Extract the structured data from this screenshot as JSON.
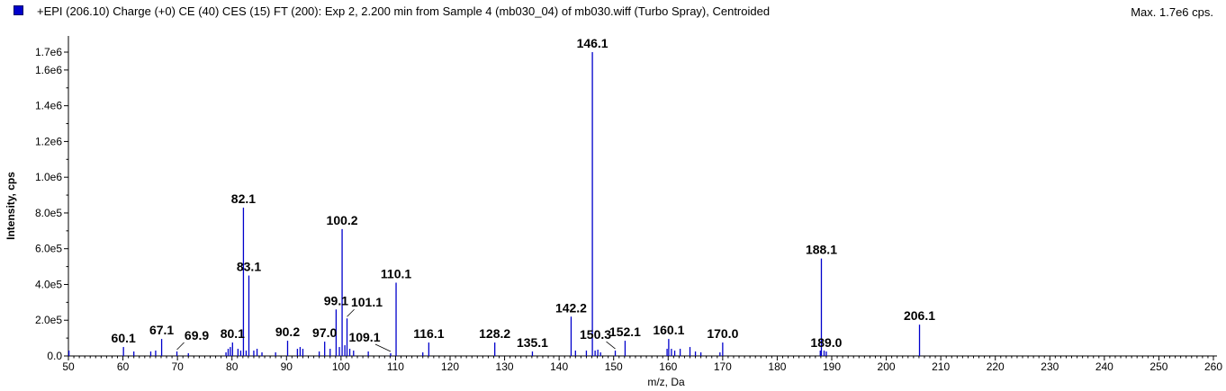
{
  "header": {
    "title": "+EPI (206.10) Charge (+0) CE (40) CES (15) FT (200): Exp 2, 2.200 min from Sample 4 (mb030_04) of mb030.wiff (Turbo Spray), Centroided",
    "max_label": "Max. 1.7e6 cps.",
    "series_color": "#0000cc"
  },
  "chart_data": {
    "type": "bar",
    "title": "+EPI (206.10) Charge (+0) CE (40) CES (15) FT (200): Exp 2, 2.200 min from Sample 4 (mb030_04) of mb030.wiff (Turbo Spray), Centroided",
    "xlabel": "m/z, Da",
    "ylabel": "Intensity, cps",
    "xlim": [
      50,
      260
    ],
    "ylim": [
      0,
      1750000
    ],
    "grid": false,
    "x_ticks": [
      50,
      60,
      70,
      80,
      90,
      100,
      110,
      120,
      130,
      140,
      150,
      160,
      170,
      180,
      190,
      200,
      210,
      220,
      230,
      240,
      250,
      260
    ],
    "x_tick_labels": [
      "50",
      "60",
      "70",
      "80",
      "90",
      "100",
      "110",
      "120",
      "130",
      "140",
      "150",
      "160",
      "170",
      "180",
      "190",
      "200",
      "210",
      "220",
      "230",
      "240",
      "250",
      "260"
    ],
    "y_ticks": [
      0,
      200000,
      400000,
      600000,
      800000,
      1000000,
      1200000,
      1400000,
      1600000,
      1700000
    ],
    "y_tick_labels": [
      "0.0",
      "2.0e5",
      "4.0e5",
      "6.0e5",
      "8.0e5",
      "1.0e6",
      "1.2e6",
      "1.4e6",
      "1.6e6",
      "1.7e6"
    ],
    "peaks": [
      {
        "mz": 50.1,
        "intensity": 30000
      },
      {
        "mz": 60.1,
        "intensity": 50000
      },
      {
        "mz": 62.0,
        "intensity": 25000
      },
      {
        "mz": 65.1,
        "intensity": 25000
      },
      {
        "mz": 66.0,
        "intensity": 30000
      },
      {
        "mz": 67.1,
        "intensity": 95000
      },
      {
        "mz": 69.9,
        "intensity": 25000
      },
      {
        "mz": 72.0,
        "intensity": 15000
      },
      {
        "mz": 78.9,
        "intensity": 20000
      },
      {
        "mz": 79.3,
        "intensity": 40000
      },
      {
        "mz": 79.7,
        "intensity": 50000
      },
      {
        "mz": 80.1,
        "intensity": 75000
      },
      {
        "mz": 81.1,
        "intensity": 40000
      },
      {
        "mz": 81.6,
        "intensity": 30000
      },
      {
        "mz": 82.1,
        "intensity": 830000
      },
      {
        "mz": 82.6,
        "intensity": 30000
      },
      {
        "mz": 83.1,
        "intensity": 450000
      },
      {
        "mz": 84.0,
        "intensity": 30000
      },
      {
        "mz": 84.6,
        "intensity": 40000
      },
      {
        "mz": 85.5,
        "intensity": 20000
      },
      {
        "mz": 88.0,
        "intensity": 20000
      },
      {
        "mz": 90.2,
        "intensity": 85000
      },
      {
        "mz": 92.0,
        "intensity": 40000
      },
      {
        "mz": 92.5,
        "intensity": 50000
      },
      {
        "mz": 93.0,
        "intensity": 40000
      },
      {
        "mz": 96.0,
        "intensity": 25000
      },
      {
        "mz": 97.0,
        "intensity": 80000
      },
      {
        "mz": 98.0,
        "intensity": 40000
      },
      {
        "mz": 99.1,
        "intensity": 260000
      },
      {
        "mz": 99.7,
        "intensity": 50000
      },
      {
        "mz": 100.2,
        "intensity": 710000
      },
      {
        "mz": 100.7,
        "intensity": 60000
      },
      {
        "mz": 101.1,
        "intensity": 210000
      },
      {
        "mz": 101.6,
        "intensity": 40000
      },
      {
        "mz": 102.3,
        "intensity": 30000
      },
      {
        "mz": 105.0,
        "intensity": 25000
      },
      {
        "mz": 109.1,
        "intensity": 15000
      },
      {
        "mz": 110.1,
        "intensity": 410000
      },
      {
        "mz": 115.0,
        "intensity": 20000
      },
      {
        "mz": 116.1,
        "intensity": 75000
      },
      {
        "mz": 128.2,
        "intensity": 75000
      },
      {
        "mz": 135.1,
        "intensity": 25000
      },
      {
        "mz": 142.2,
        "intensity": 220000
      },
      {
        "mz": 143.0,
        "intensity": 30000
      },
      {
        "mz": 145.0,
        "intensity": 30000
      },
      {
        "mz": 146.1,
        "intensity": 1700000
      },
      {
        "mz": 146.6,
        "intensity": 30000
      },
      {
        "mz": 147.1,
        "intensity": 35000
      },
      {
        "mz": 147.6,
        "intensity": 20000
      },
      {
        "mz": 150.3,
        "intensity": 30000
      },
      {
        "mz": 152.1,
        "intensity": 85000
      },
      {
        "mz": 159.8,
        "intensity": 40000
      },
      {
        "mz": 160.1,
        "intensity": 95000
      },
      {
        "mz": 160.6,
        "intensity": 40000
      },
      {
        "mz": 161.2,
        "intensity": 30000
      },
      {
        "mz": 162.2,
        "intensity": 40000
      },
      {
        "mz": 164.0,
        "intensity": 50000
      },
      {
        "mz": 165.0,
        "intensity": 25000
      },
      {
        "mz": 166.0,
        "intensity": 20000
      },
      {
        "mz": 169.5,
        "intensity": 20000
      },
      {
        "mz": 170.0,
        "intensity": 75000
      },
      {
        "mz": 187.9,
        "intensity": 30000
      },
      {
        "mz": 188.1,
        "intensity": 545000
      },
      {
        "mz": 188.6,
        "intensity": 30000
      },
      {
        "mz": 189.0,
        "intensity": 25000
      },
      {
        "mz": 206.1,
        "intensity": 175000
      }
    ],
    "annotations": [
      {
        "text": "60.1",
        "mz": 60.1,
        "intensity": 50000
      },
      {
        "text": "67.1",
        "mz": 67.1,
        "intensity": 95000
      },
      {
        "text": "69.9",
        "mz": 69.9,
        "intensity": 25000,
        "leader": true
      },
      {
        "text": "80.1",
        "mz": 80.1,
        "intensity": 75000
      },
      {
        "text": "82.1",
        "mz": 82.1,
        "intensity": 830000
      },
      {
        "text": "83.1",
        "mz": 83.1,
        "intensity": 450000
      },
      {
        "text": "90.2",
        "mz": 90.2,
        "intensity": 85000
      },
      {
        "text": "97.0",
        "mz": 97.0,
        "intensity": 80000
      },
      {
        "text": "99.1",
        "mz": 99.1,
        "intensity": 260000
      },
      {
        "text": "100.2",
        "mz": 100.2,
        "intensity": 710000
      },
      {
        "text": "101.1",
        "mz": 101.1,
        "intensity": 210000,
        "leader": true
      },
      {
        "text": "109.1",
        "mz": 109.1,
        "intensity": 15000,
        "leader": true
      },
      {
        "text": "110.1",
        "mz": 110.1,
        "intensity": 410000
      },
      {
        "text": "116.1",
        "mz": 116.1,
        "intensity": 75000
      },
      {
        "text": "128.2",
        "mz": 128.2,
        "intensity": 75000
      },
      {
        "text": "135.1",
        "mz": 135.1,
        "intensity": 25000
      },
      {
        "text": "142.2",
        "mz": 142.2,
        "intensity": 220000
      },
      {
        "text": "146.1",
        "mz": 146.1,
        "intensity": 1700000
      },
      {
        "text": "150.3",
        "mz": 150.3,
        "intensity": 30000,
        "leader": true
      },
      {
        "text": "152.1",
        "mz": 152.1,
        "intensity": 85000
      },
      {
        "text": "160.1",
        "mz": 160.1,
        "intensity": 95000
      },
      {
        "text": "170.0",
        "mz": 170.0,
        "intensity": 75000
      },
      {
        "text": "188.1",
        "mz": 188.1,
        "intensity": 545000
      },
      {
        "text": "189.0",
        "mz": 189.0,
        "intensity": 25000
      },
      {
        "text": "206.1",
        "mz": 206.1,
        "intensity": 175000
      }
    ]
  }
}
